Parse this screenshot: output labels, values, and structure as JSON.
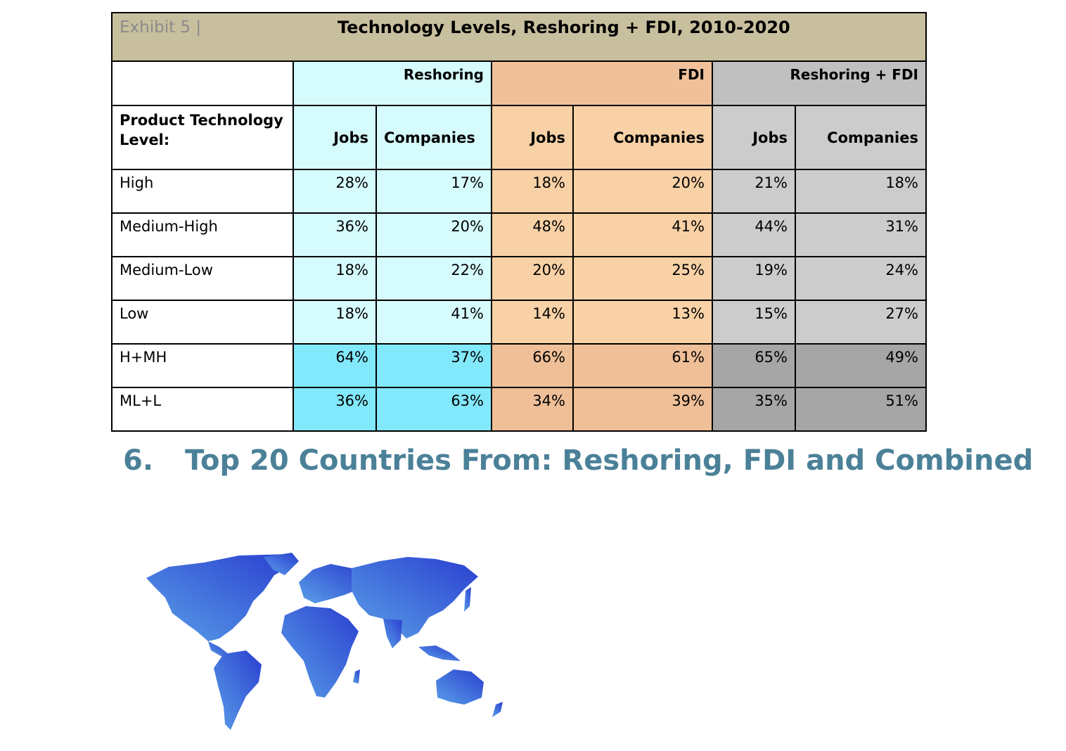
{
  "exhibit": {
    "label": "Exhibit 5 |",
    "title": "Technology Levels, Reshoring + FDI, 2010-2020",
    "groups": [
      "Reshoring",
      "FDI",
      "Reshoring + FDI"
    ],
    "row_header": "Product Technology Level:",
    "columns": [
      "Jobs",
      "Companies",
      "Jobs",
      "Companies",
      "Jobs",
      "Companies"
    ],
    "rows": [
      {
        "label": "High",
        "values": [
          "28%",
          "17%",
          "18%",
          "20%",
          "21%",
          "18%"
        ]
      },
      {
        "label": "Medium-High",
        "values": [
          "36%",
          "20%",
          "48%",
          "41%",
          "44%",
          "31%"
        ]
      },
      {
        "label": "Medium-Low",
        "values": [
          "18%",
          "22%",
          "20%",
          "25%",
          "19%",
          "24%"
        ]
      },
      {
        "label": "Low",
        "values": [
          "18%",
          "41%",
          "14%",
          "13%",
          "15%",
          "27%"
        ]
      },
      {
        "label": "H+MH",
        "values": [
          "64%",
          "37%",
          "66%",
          "61%",
          "65%",
          "49%"
        ]
      },
      {
        "label": "ML+L",
        "values": [
          "36%",
          "63%",
          "34%",
          "39%",
          "35%",
          "51%"
        ]
      }
    ]
  },
  "section": {
    "number": "6.",
    "title": "Top 20 Countries From: Reshoring, FDI and Combined"
  },
  "colors": {
    "heading": "#4b8198",
    "reshoring": "#d6fbfd",
    "fdi": "#f8d1a6",
    "combined": "#cccccc"
  },
  "icons": {
    "map": "world-map"
  }
}
